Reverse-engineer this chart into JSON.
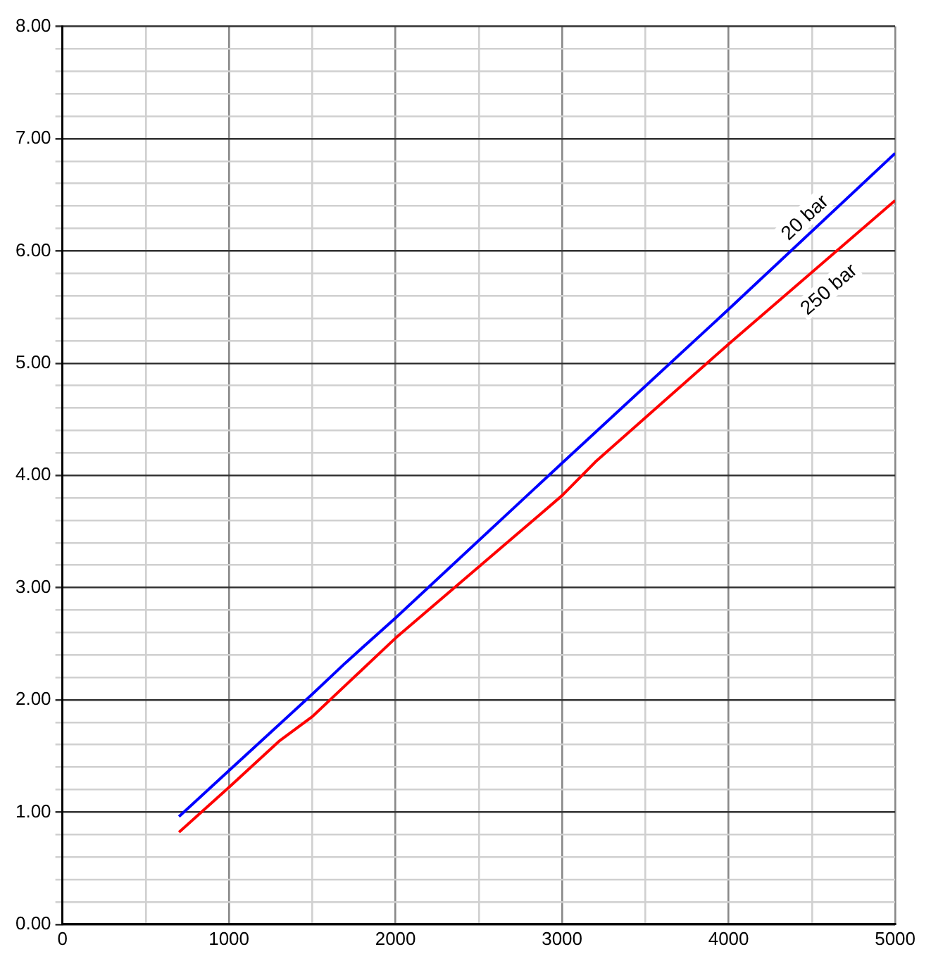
{
  "chart_data": {
    "type": "line",
    "series": [
      {
        "name": "20 bar",
        "color": "#0000ff",
        "x": [
          700,
          1000,
          1500,
          1700,
          2000,
          3000,
          4000,
          5000
        ],
        "values": [
          0.96,
          1.37,
          2.05,
          2.33,
          2.73,
          4.11,
          5.48,
          6.87
        ]
      },
      {
        "name": "250 bar",
        "color": "#ff0000",
        "x": [
          700,
          1000,
          1300,
          1500,
          1800,
          2000,
          3000,
          3200,
          4000,
          5000
        ],
        "values": [
          0.82,
          1.22,
          1.63,
          1.85,
          2.27,
          2.55,
          3.82,
          4.12,
          5.17,
          6.45
        ]
      }
    ],
    "xlim": [
      0,
      5000
    ],
    "xticks": [
      0,
      {
        "value": 500,
        "label": null
      },
      1000,
      {
        "value": 1500,
        "label": null
      },
      2000,
      {
        "value": 2500,
        "label": null
      },
      3000,
      {
        "value": 3500,
        "label": null
      },
      4000,
      {
        "value": 4500,
        "label": null
      },
      5000
    ],
    "ylim": [
      0,
      8
    ],
    "yticks": [
      {
        "value": 0,
        "label": "0.00"
      },
      {
        "value": 0.2,
        "label": null
      },
      {
        "value": 0.4,
        "label": null
      },
      {
        "value": 0.6,
        "label": null
      },
      {
        "value": 0.8,
        "label": null
      },
      {
        "value": 1,
        "label": "1.00"
      },
      {
        "value": 1.2,
        "label": null
      },
      {
        "value": 1.4,
        "label": null
      },
      {
        "value": 1.6,
        "label": null
      },
      {
        "value": 1.8,
        "label": null
      },
      {
        "value": 2,
        "label": "2.00"
      },
      {
        "value": 2.2,
        "label": null
      },
      {
        "value": 2.4,
        "label": null
      },
      {
        "value": 2.6,
        "label": null
      },
      {
        "value": 2.8,
        "label": null
      },
      {
        "value": 3,
        "label": "3.00"
      },
      {
        "value": 3.2,
        "label": null
      },
      {
        "value": 3.4,
        "label": null
      },
      {
        "value": 3.6,
        "label": null
      },
      {
        "value": 3.8,
        "label": null
      },
      {
        "value": 4,
        "label": "4.00"
      },
      {
        "value": 4.2,
        "label": null
      },
      {
        "value": 4.4,
        "label": null
      },
      {
        "value": 4.6,
        "label": null
      },
      {
        "value": 4.8,
        "label": null
      },
      {
        "value": 5,
        "label": "5.00"
      },
      {
        "value": 5.2,
        "label": null
      },
      {
        "value": 5.4,
        "label": null
      },
      {
        "value": 5.6,
        "label": null
      },
      {
        "value": 5.8,
        "label": null
      },
      {
        "value": 6,
        "label": "6.00"
      },
      {
        "value": 6.2,
        "label": null
      },
      {
        "value": 6.4,
        "label": null
      },
      {
        "value": 6.6,
        "label": null
      },
      {
        "value": 6.8,
        "label": null
      },
      {
        "value": 7,
        "label": "7.00"
      },
      {
        "value": 7.2,
        "label": null
      },
      {
        "value": 7.4,
        "label": null
      },
      {
        "value": 7.6,
        "label": null
      },
      {
        "value": 7.8,
        "label": null
      },
      {
        "value": 8,
        "label": "8.00"
      }
    ],
    "grid": true,
    "marker": "none",
    "line_style": "solid",
    "legend": false
  }
}
